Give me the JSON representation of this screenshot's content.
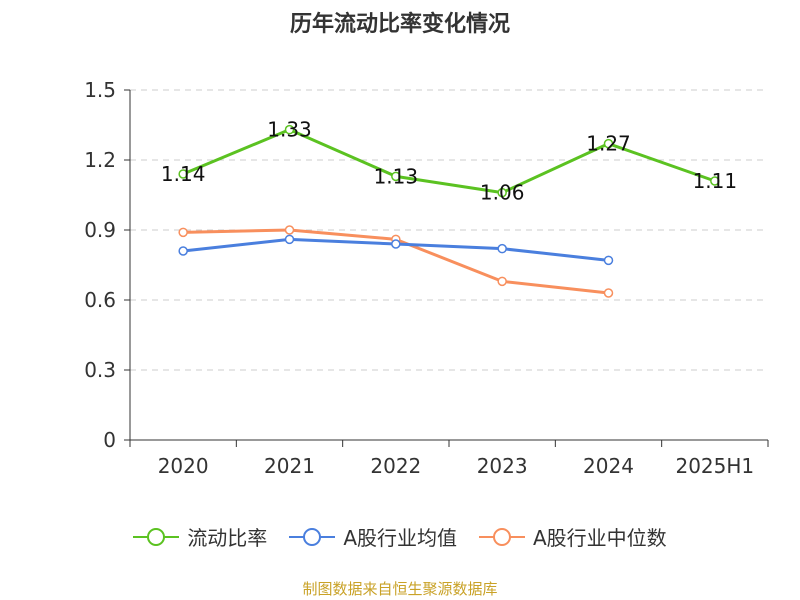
{
  "chart_data": {
    "type": "line",
    "title": "历年流动比率变化情况",
    "categories": [
      "2020",
      "2021",
      "2022",
      "2023",
      "2024",
      "2025H1"
    ],
    "yticks": [
      "0",
      "0.3",
      "0.6",
      "0.9",
      "1.2",
      "1.5"
    ],
    "ylim": [
      0,
      1.5
    ],
    "grid": true,
    "legend_position": "bottom",
    "series": [
      {
        "name": "流动比率",
        "color": "#5bc221",
        "values": [
          1.14,
          1.33,
          1.13,
          1.06,
          1.27,
          1.11
        ],
        "labels": [
          "1.14",
          "1.33",
          "1.13",
          "1.06",
          "1.27",
          "1.11"
        ]
      },
      {
        "name": "A股行业均值",
        "color": "#4a7fde",
        "values": [
          0.81,
          0.86,
          0.84,
          0.82,
          0.77,
          null
        ]
      },
      {
        "name": "A股行业中位数",
        "color": "#f88f5d",
        "values": [
          0.89,
          0.9,
          0.86,
          0.68,
          0.63,
          null
        ]
      }
    ]
  },
  "source": "制图数据来自恒生聚源数据库"
}
